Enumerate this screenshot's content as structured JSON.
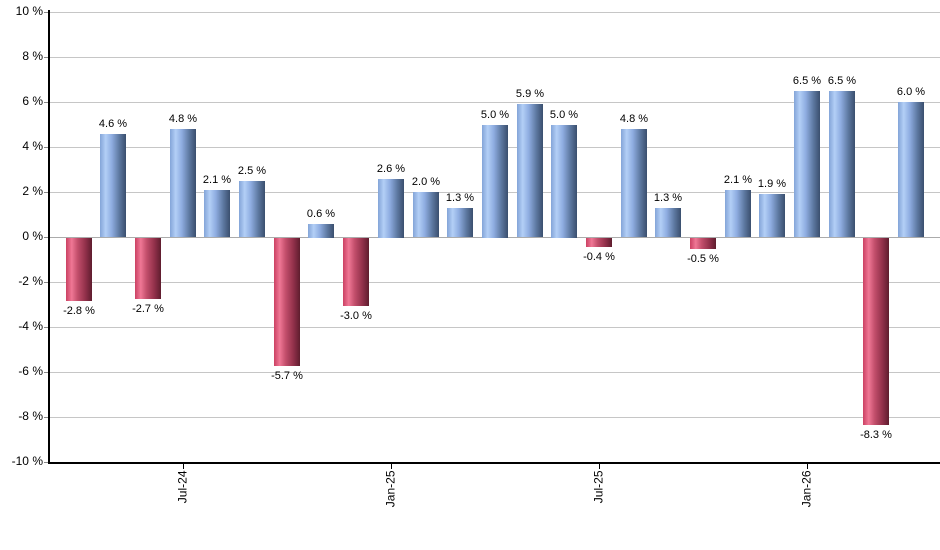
{
  "chart_data": {
    "type": "bar",
    "title": "",
    "unit": "%",
    "values": [
      -2.8,
      4.6,
      -2.7,
      4.8,
      2.1,
      2.5,
      -5.7,
      0.6,
      -3.0,
      2.6,
      2.0,
      1.3,
      5.0,
      5.9,
      5.0,
      -0.4,
      4.8,
      1.3,
      -0.5,
      2.1,
      1.9,
      6.5,
      6.5,
      -8.3,
      6.0
    ],
    "bar_labels": [
      "-2.8 %",
      "4.6 %",
      "-2.7 %",
      "4.8 %",
      "2.1 %",
      "2.5 %",
      "-5.7 %",
      "0.6 %",
      "-3.0 %",
      "2.6 %",
      "2.0 %",
      "1.3 %",
      "5.0 %",
      "5.9 %",
      "5.0 %",
      "-0.4 %",
      "4.8 %",
      "1.3 %",
      "-0.5 %",
      "2.1 %",
      "1.9 %",
      "6.5 %",
      "6.5 %",
      "-8.3 %",
      "6.0 %"
    ],
    "x_ticks": [
      {
        "index": 3,
        "label": "Jul-24"
      },
      {
        "index": 9,
        "label": "Jan-25"
      },
      {
        "index": 15,
        "label": "Jul-25"
      },
      {
        "index": 21,
        "label": "Jan-26"
      }
    ],
    "y_ticks": [
      {
        "value": 10,
        "label": "10 %"
      },
      {
        "value": 8,
        "label": "8 %"
      },
      {
        "value": 6,
        "label": "6 %"
      },
      {
        "value": 4,
        "label": "4 %"
      },
      {
        "value": 2,
        "label": "2 %"
      },
      {
        "value": 0,
        "label": "0 %"
      },
      {
        "value": -2,
        "label": "-2 %"
      },
      {
        "value": -4,
        "label": "-4 %"
      },
      {
        "value": -6,
        "label": "-6 %"
      },
      {
        "value": -8,
        "label": "-8 %"
      },
      {
        "value": -10,
        "label": "-10 %"
      }
    ],
    "ylim": [
      -10,
      10
    ],
    "grid": true,
    "legend": "none",
    "colors": {
      "positive_gradient": [
        "#83a4d8",
        "#b3cff6",
        "#8fade1",
        "#5c779f",
        "#3a4f6e"
      ],
      "negative_gradient": [
        "#cb4163",
        "#ef7795",
        "#c24e6b",
        "#91304a",
        "#5e1d2e"
      ],
      "gridline": "#c6c6c6",
      "zero_line": "#ababab",
      "axis": "#000000",
      "text": "#000000",
      "background": "#ffffff"
    }
  }
}
